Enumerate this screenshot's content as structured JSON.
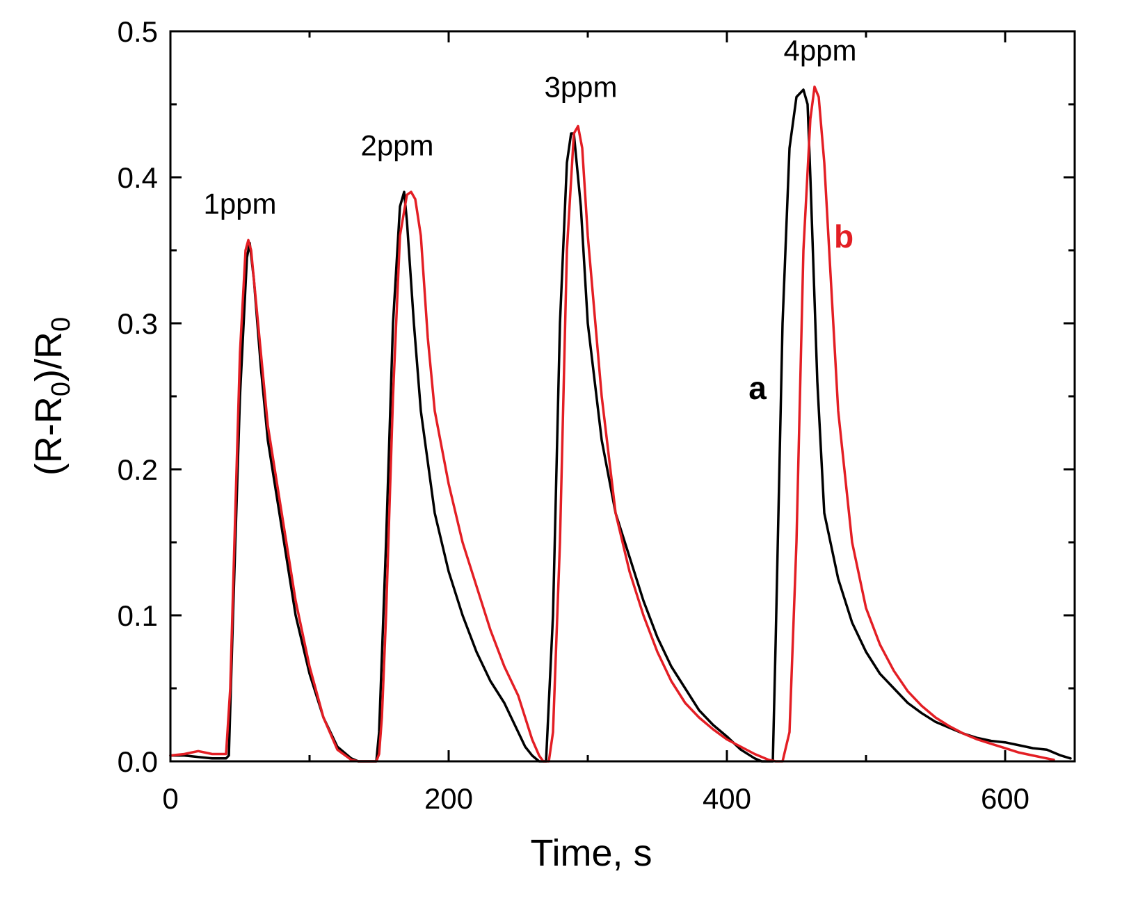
{
  "chart_data": {
    "type": "line",
    "title": "",
    "xlabel": "Time, s",
    "ylabel": "(R-R0)/R0",
    "ylabel_parts": {
      "a": "(R-R",
      "sub1": "0",
      "b": ")/R",
      "sub2": "0"
    },
    "xlim": [
      0,
      650
    ],
    "ylim": [
      0,
      0.5
    ],
    "xticks": [
      0,
      200,
      400,
      600
    ],
    "xtick_labels": [
      "0",
      "200",
      "400",
      "600"
    ],
    "xminor": [
      100,
      300,
      500
    ],
    "yticks": [
      0.0,
      0.1,
      0.2,
      0.3,
      0.4,
      0.5
    ],
    "ytick_labels": [
      "0.0",
      "0.1",
      "0.2",
      "0.3",
      "0.4",
      "0.5"
    ],
    "yminor": [
      0.05,
      0.15,
      0.25,
      0.35,
      0.45
    ],
    "grid": false,
    "annotations": [
      {
        "text": "1ppm",
        "x": 50,
        "y": 0.375
      },
      {
        "text": "2ppm",
        "x": 163,
        "y": 0.415
      },
      {
        "text": "3ppm",
        "x": 295,
        "y": 0.455
      },
      {
        "text": "4ppm",
        "x": 467,
        "y": 0.48
      }
    ],
    "series": [
      {
        "name": "a",
        "label": "a",
        "color": "#000000",
        "label_pos": {
          "x": 422,
          "y": 0.248
        },
        "x": [
          0,
          10,
          20,
          30,
          40,
          42,
          45,
          50,
          55,
          57,
          60,
          65,
          70,
          80,
          90,
          100,
          110,
          120,
          130,
          135,
          140,
          145,
          148,
          150,
          155,
          160,
          165,
          168,
          170,
          175,
          180,
          190,
          200,
          210,
          220,
          230,
          240,
          250,
          255,
          260,
          265,
          268,
          270,
          275,
          280,
          285,
          288,
          290,
          295,
          300,
          310,
          320,
          330,
          340,
          350,
          360,
          370,
          380,
          390,
          400,
          410,
          420,
          425,
          430,
          433,
          435,
          440,
          445,
          450,
          455,
          458,
          460,
          465,
          470,
          480,
          490,
          500,
          510,
          520,
          530,
          540,
          550,
          560,
          570,
          580,
          590,
          600,
          610,
          620,
          630,
          640,
          647
        ],
        "values": [
          0.004,
          0.004,
          0.003,
          0.002,
          0.002,
          0.004,
          0.1,
          0.25,
          0.345,
          0.355,
          0.33,
          0.27,
          0.22,
          0.16,
          0.1,
          0.06,
          0.03,
          0.01,
          0.002,
          0.0,
          0.0,
          0.0,
          0.0,
          0.02,
          0.15,
          0.3,
          0.38,
          0.39,
          0.37,
          0.3,
          0.24,
          0.17,
          0.13,
          0.1,
          0.075,
          0.055,
          0.04,
          0.02,
          0.01,
          0.004,
          0.0,
          0.0,
          0.0,
          0.1,
          0.3,
          0.41,
          0.43,
          0.43,
          0.38,
          0.3,
          0.22,
          0.17,
          0.14,
          0.11,
          0.085,
          0.065,
          0.05,
          0.035,
          0.025,
          0.017,
          0.008,
          0.002,
          0.0,
          0.0,
          0.0,
          0.08,
          0.3,
          0.42,
          0.455,
          0.46,
          0.45,
          0.4,
          0.26,
          0.17,
          0.125,
          0.095,
          0.075,
          0.06,
          0.05,
          0.04,
          0.033,
          0.027,
          0.023,
          0.019,
          0.016,
          0.014,
          0.013,
          0.011,
          0.009,
          0.008,
          0.004,
          0.002
        ]
      },
      {
        "name": "b",
        "label": "b",
        "color": "#e31e24",
        "label_pos": {
          "x": 484,
          "y": 0.352
        },
        "x": [
          0,
          10,
          15,
          20,
          25,
          30,
          40,
          43,
          46,
          50,
          54,
          56,
          58,
          62,
          66,
          70,
          80,
          90,
          100,
          110,
          120,
          130,
          135,
          140,
          145,
          148,
          150,
          152,
          155,
          160,
          165,
          170,
          173,
          176,
          180,
          185,
          190,
          200,
          210,
          220,
          230,
          240,
          250,
          255,
          260,
          265,
          268,
          270,
          272,
          275,
          280,
          285,
          290,
          293,
          296,
          300,
          310,
          320,
          330,
          340,
          350,
          360,
          370,
          380,
          390,
          400,
          410,
          420,
          430,
          435,
          438,
          440,
          445,
          450,
          455,
          460,
          463,
          466,
          470,
          480,
          490,
          500,
          510,
          520,
          530,
          540,
          550,
          560,
          570,
          580,
          590,
          600,
          610,
          620,
          630,
          635
        ],
        "values": [
          0.004,
          0.005,
          0.006,
          0.007,
          0.006,
          0.005,
          0.005,
          0.05,
          0.15,
          0.28,
          0.35,
          0.357,
          0.35,
          0.31,
          0.27,
          0.23,
          0.17,
          0.11,
          0.065,
          0.03,
          0.008,
          0.001,
          0.0,
          0.0,
          0.0,
          0.0,
          0.005,
          0.03,
          0.1,
          0.25,
          0.36,
          0.388,
          0.39,
          0.385,
          0.36,
          0.29,
          0.24,
          0.19,
          0.15,
          0.12,
          0.09,
          0.065,
          0.045,
          0.03,
          0.015,
          0.004,
          0.0,
          0.0,
          0.0,
          0.02,
          0.15,
          0.35,
          0.43,
          0.435,
          0.42,
          0.36,
          0.25,
          0.17,
          0.13,
          0.1,
          0.075,
          0.055,
          0.04,
          0.03,
          0.022,
          0.015,
          0.01,
          0.005,
          0.001,
          0.0,
          0.0,
          0.0,
          0.02,
          0.15,
          0.35,
          0.44,
          0.462,
          0.455,
          0.41,
          0.24,
          0.15,
          0.105,
          0.08,
          0.062,
          0.048,
          0.038,
          0.03,
          0.024,
          0.019,
          0.015,
          0.012,
          0.009,
          0.006,
          0.004,
          0.002,
          0.001
        ]
      }
    ]
  }
}
